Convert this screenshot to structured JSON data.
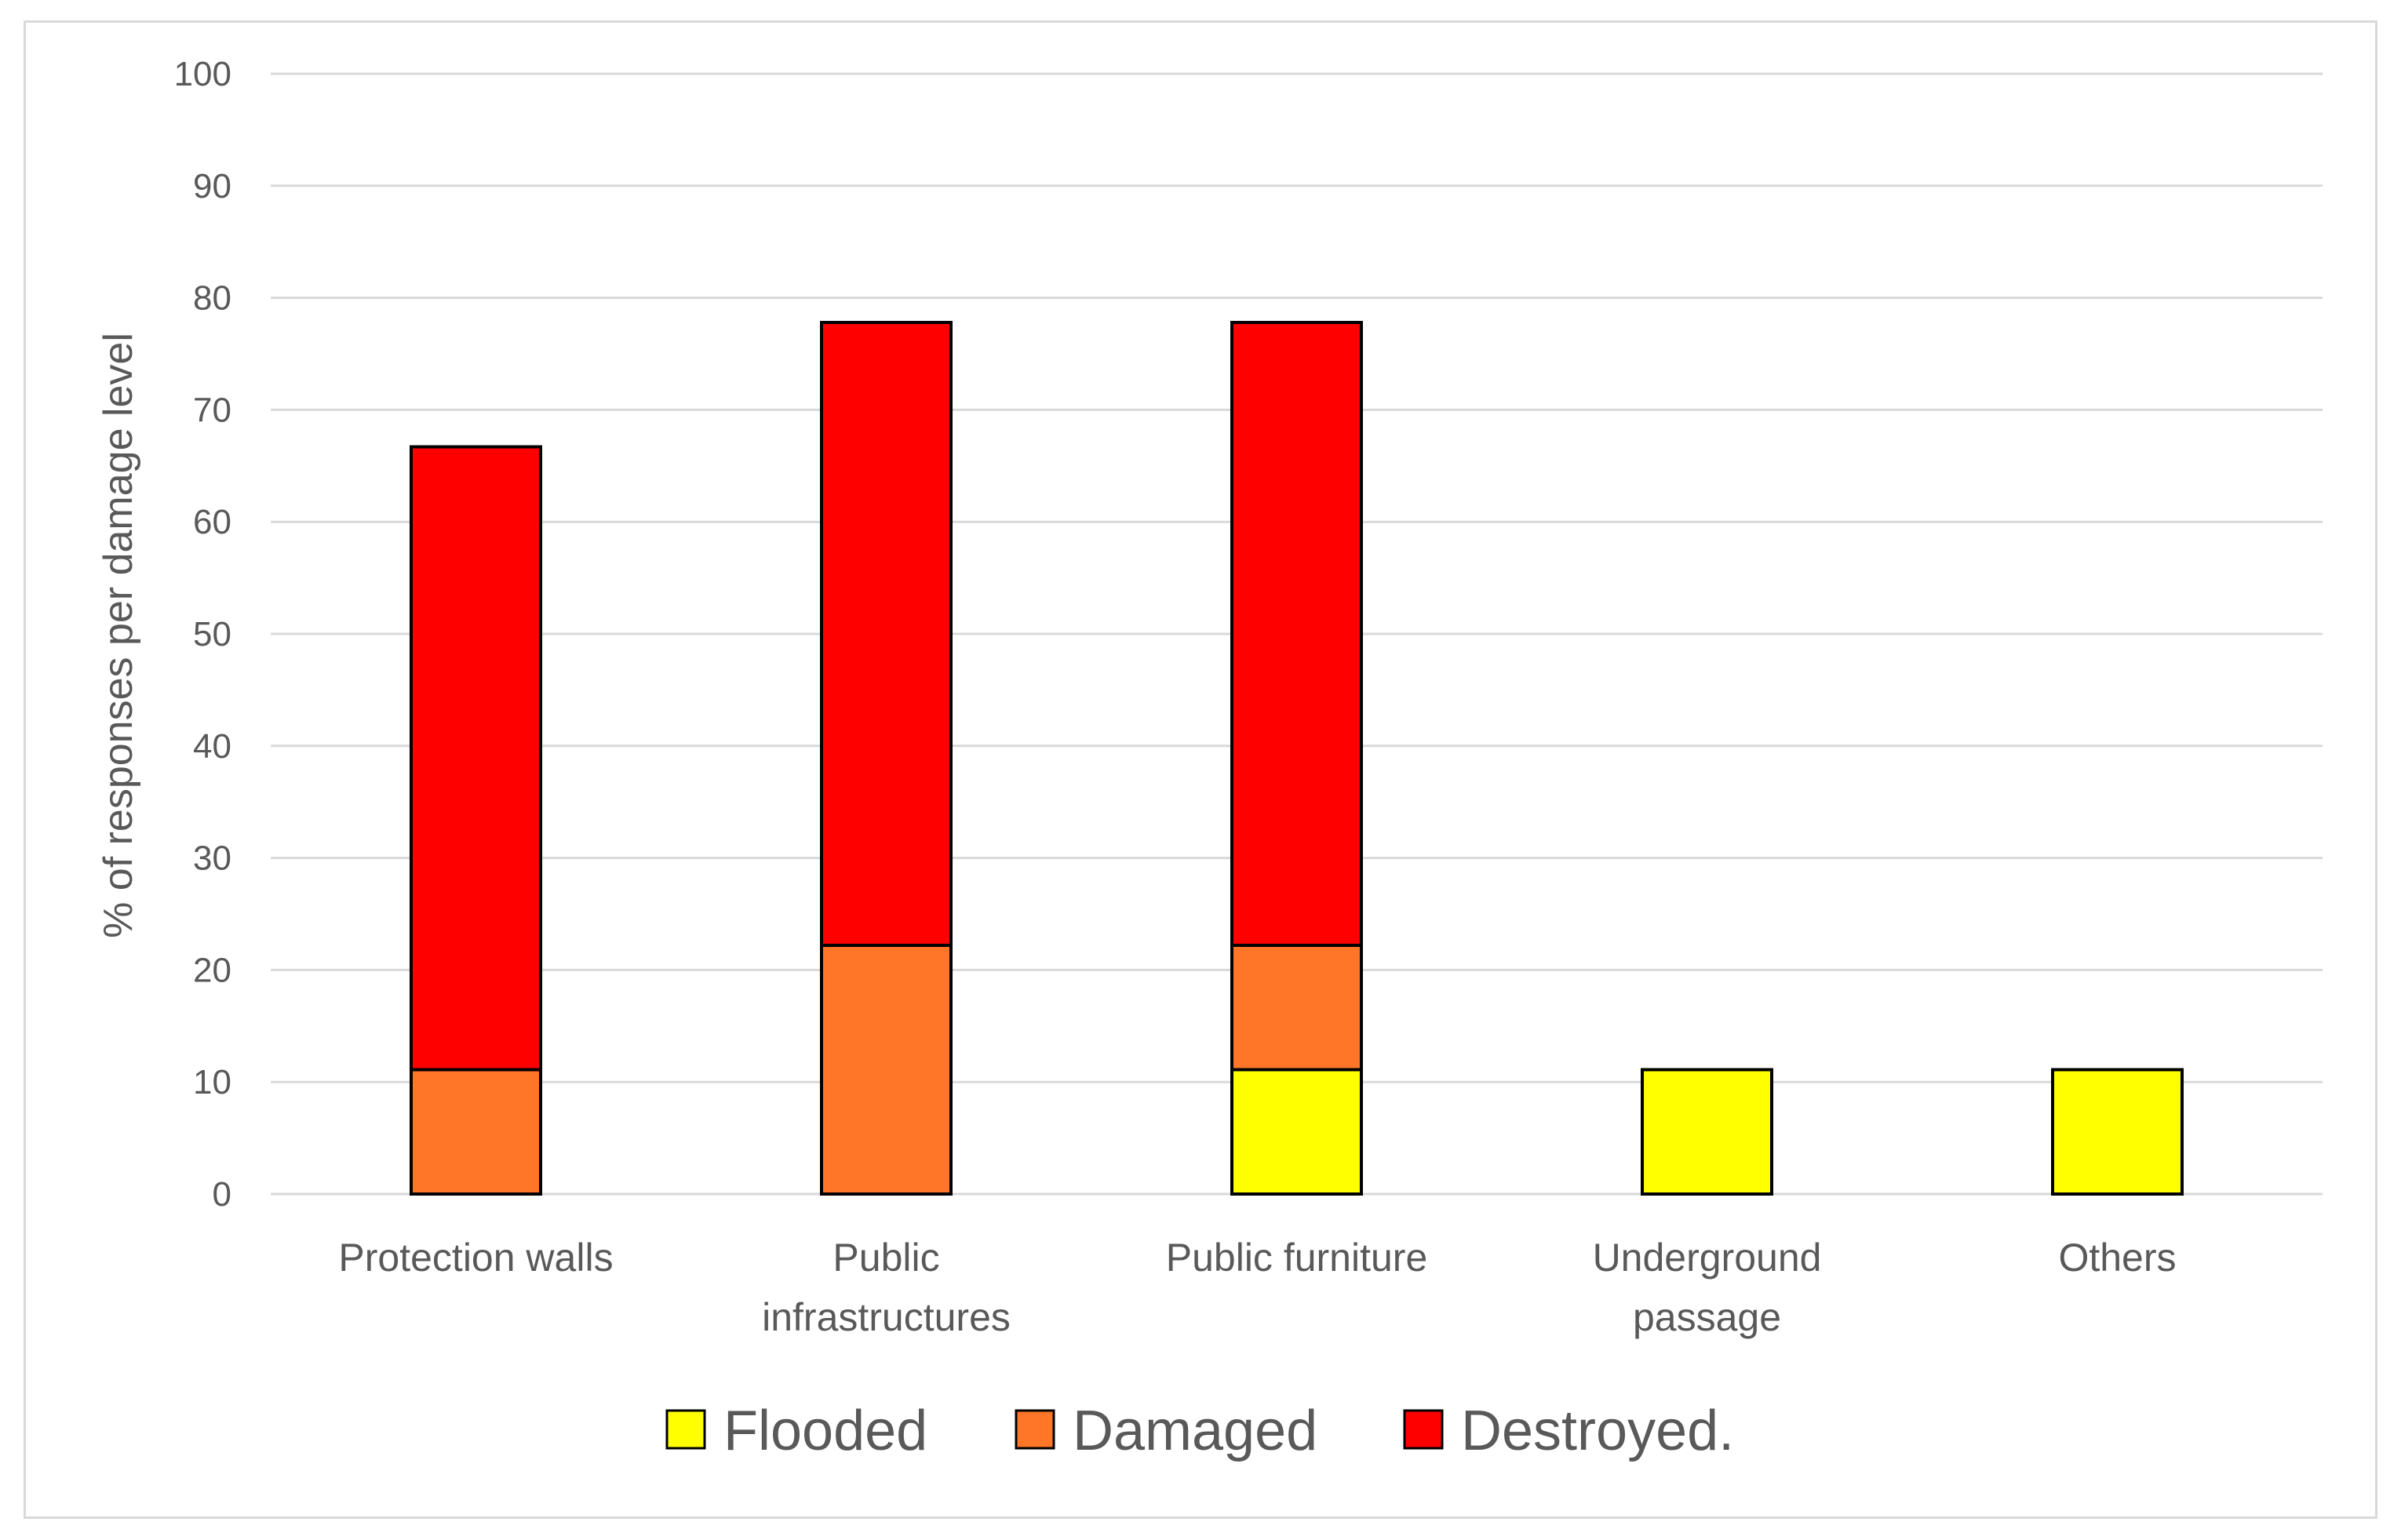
{
  "chart_data": {
    "type": "bar",
    "stacked": true,
    "categories": [
      [
        "Protection walls"
      ],
      [
        "Public",
        "infrastructures"
      ],
      [
        "Public furniture"
      ],
      [
        "Underground",
        "passage"
      ],
      [
        "Others"
      ]
    ],
    "series": [
      {
        "name": "Flooded",
        "color": "#ffff00",
        "values": [
          0,
          0,
          11.1,
          11.1,
          11.1
        ]
      },
      {
        "name": "Damaged",
        "color": "#ff7628",
        "values": [
          11.1,
          22.2,
          11.1,
          0,
          0
        ]
      },
      {
        "name": "Destroyed.",
        "color": "#ff0000",
        "values": [
          55.6,
          55.6,
          55.6,
          0,
          0
        ]
      }
    ],
    "ylabel": "% of responses per damage level",
    "xlabel": "",
    "ylim": [
      0,
      100
    ],
    "yticks": [
      0,
      10,
      20,
      30,
      40,
      50,
      60,
      70,
      80,
      90,
      100
    ],
    "grid": true,
    "legend_position": "bottom"
  }
}
